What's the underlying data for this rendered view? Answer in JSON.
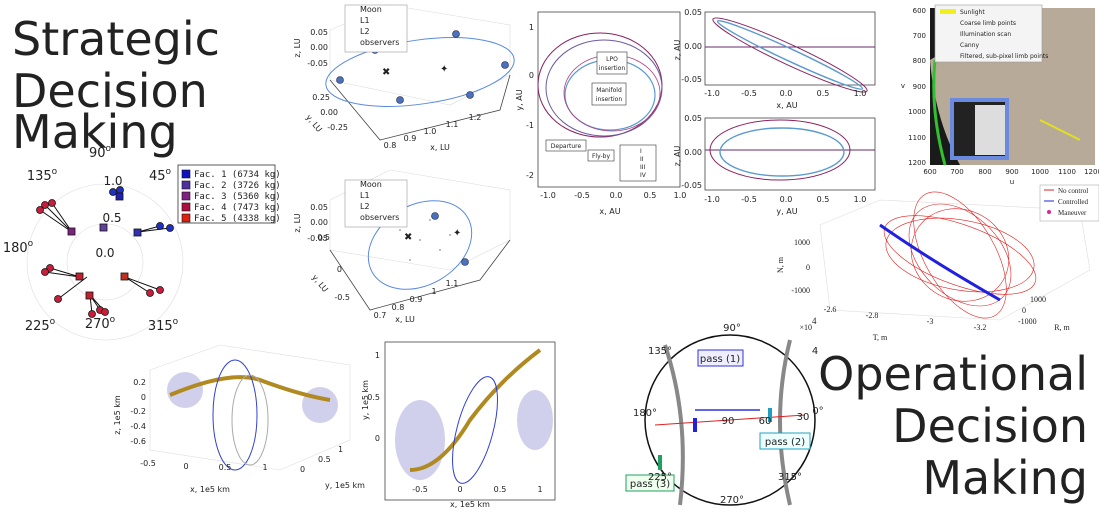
{
  "headings": {
    "strategic": [
      "Strategic",
      "Decision",
      "Making"
    ],
    "operational": [
      "Operational",
      "Decision",
      "Making"
    ]
  },
  "polar": {
    "angles": [
      "90",
      "45",
      "135",
      "180",
      "225",
      "270",
      "315"
    ],
    "degree_mark": "o",
    "radii": [
      "1.0",
      "0.5",
      "0.0"
    ],
    "legend": [
      "Fac. 1 (6734 kg)",
      "Fac. 2 (3726 kg)",
      "Fac. 3 (5360 kg)",
      "Fac. 4 (7473 kg)",
      "Fac. 5 (4338 kg)"
    ]
  },
  "lagrange_top": {
    "legend": [
      "Moon",
      "L1",
      "L2",
      "observers"
    ],
    "z_label": "z, LU",
    "z_ticks": [
      "0.05",
      "0.00",
      "-0.05"
    ],
    "y_label": "y, LU",
    "y_ticks": [
      "0.25",
      "0.00",
      "-0.25"
    ],
    "x_label": "x, LU",
    "x_ticks": [
      "0.8",
      "0.9",
      "1.0",
      "1.1",
      "1.2"
    ]
  },
  "lagrange_bottom": {
    "legend": [
      "Moon",
      "L1",
      "L2",
      "observers"
    ],
    "z_label": "z, LU",
    "z_ticks": [
      "0.05",
      "0.00",
      "-0.05"
    ],
    "y_label": "y, LU",
    "y_ticks": [
      "0.5",
      "0",
      "-0.5"
    ],
    "x_label": "x, LU",
    "x_ticks": [
      "0.7",
      "0.8",
      "0.9",
      "1",
      "1.1"
    ]
  },
  "transfer": {
    "y_label": "y, AU",
    "y_ticks": [
      "1",
      "0",
      "-1",
      "-2"
    ],
    "x_label": "x, AU",
    "x_ticks": [
      "-1.0",
      "-0.5",
      "0.0",
      "0.5",
      "1.0"
    ],
    "annotations": {
      "lpo": [
        "LPO",
        "insertion"
      ],
      "manifold": [
        "Manifold",
        "insertion"
      ],
      "departure": "Departure",
      "flyby": "Fly-by"
    },
    "legend": [
      "I",
      "II",
      "III",
      "IV"
    ]
  },
  "projections": {
    "top": {
      "y_label": "z, AU",
      "y_ticks": [
        "0.05",
        "0.00",
        "-0.05"
      ],
      "x_label": "x, AU",
      "x_ticks": [
        "-1.0",
        "-0.5",
        "0.0",
        "0.5",
        "1.0"
      ]
    },
    "bottom": {
      "y_label": "z, AU",
      "y_ticks": [
        "0.05",
        "0.00",
        "-0.05"
      ],
      "x_label": "y, AU",
      "x_ticks": [
        "-1.0",
        "-0.5",
        "0.0",
        "0.5",
        "1.0"
      ]
    }
  },
  "limb_image": {
    "legend": [
      "Sunlight",
      "Coarse limb points",
      "Illumination scan",
      "Canny",
      "Filtered, sub-pixel limb points"
    ],
    "v_label": "v",
    "v_ticks": [
      "600",
      "700",
      "800",
      "900",
      "1000",
      "1100",
      "1200"
    ],
    "u_label": "u",
    "u_ticks": [
      "600",
      "700",
      "800",
      "900",
      "1000",
      "1100",
      "1200"
    ]
  },
  "control": {
    "legend": [
      "No control",
      "Controlled",
      "Maneuver"
    ],
    "n_label": "N, m",
    "n_ticks": [
      "1000",
      "0",
      "-1000"
    ],
    "t_label": "T, m",
    "t_ticks": [
      "-2.6",
      "-2.8",
      "-3",
      "-3.2"
    ],
    "t_scale": "×10",
    "t_scale_exp": "4",
    "r_label": "R, m",
    "r_ticks": [
      "1000",
      "0",
      "-1000"
    ]
  },
  "halo_3d": {
    "z_label": "z, 1e5 km",
    "z_ticks": [
      "0.2",
      "0",
      "-0.2",
      "-0.4",
      "-0.6"
    ],
    "x_label": "x, 1e5 km",
    "x_ticks": [
      "-0.5",
      "0",
      "0.5",
      "1"
    ],
    "y_label": "y, 1e5 km",
    "y_ticks": [
      "0",
      "0.5",
      "1"
    ]
  },
  "halo_xy": {
    "y_label": "y, 1e5 km",
    "y_ticks": [
      "1",
      "0.5",
      "0"
    ],
    "x_label": "x, 1e5 km",
    "x_ticks": [
      "-0.5",
      "0",
      "0.5",
      "1"
    ]
  },
  "sky": {
    "azimuths": [
      "90°",
      "4",
      "135°",
      "180°",
      "0°",
      "225°",
      "270°",
      "315°"
    ],
    "elevations": [
      "90",
      "60",
      "30"
    ],
    "passes": [
      "pass (1)",
      "pass (2)",
      "pass (3)"
    ]
  }
}
